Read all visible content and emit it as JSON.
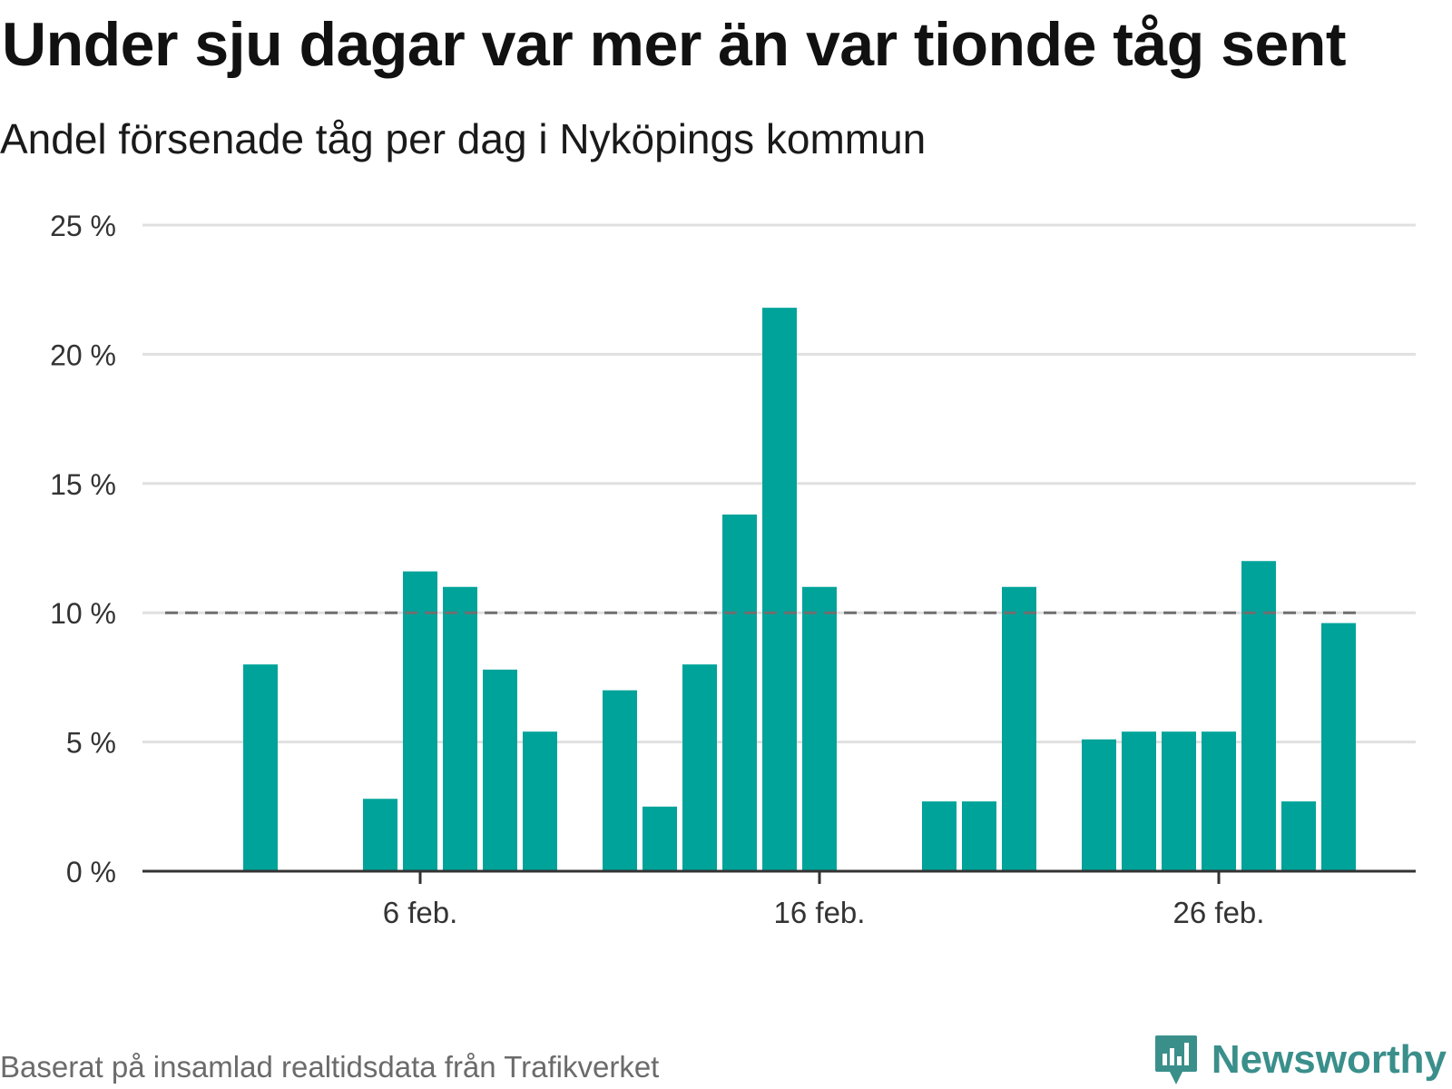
{
  "title": "Under sju dagar var mer än var tionde tåg sent",
  "subtitle": "Andel försenade tåg per dag i Nyköpings kommun",
  "source": "Baserat på insamlad realtidsdata från Trafikverket",
  "brand": {
    "name": "Newsworthy",
    "icon": "newsworthy-logo-icon",
    "color": "#3a8f8b"
  },
  "colors": {
    "bar": "#00a39a",
    "reference_line": "#6f6f6f",
    "grid": "#e0e0e0",
    "axis": "#333333"
  },
  "chart_data": {
    "type": "bar",
    "x": [
      "1 feb.",
      "2 feb.",
      "3 feb.",
      "4 feb.",
      "5 feb.",
      "6 feb.",
      "7 feb.",
      "8 feb.",
      "9 feb.",
      "10 feb.",
      "11 feb.",
      "12 feb.",
      "13 feb.",
      "14 feb.",
      "15 feb.",
      "16 feb.",
      "17 feb.",
      "18 feb.",
      "19 feb.",
      "20 feb.",
      "21 feb.",
      "22 feb.",
      "23 feb.",
      "24 feb.",
      "25 feb.",
      "26 feb.",
      "27 feb.",
      "28 feb.",
      "29 feb."
    ],
    "values": [
      null,
      8.0,
      null,
      null,
      2.8,
      11.6,
      11.0,
      7.8,
      5.4,
      null,
      7.0,
      2.5,
      8.0,
      13.8,
      21.8,
      11.0,
      null,
      null,
      2.7,
      2.7,
      11.0,
      null,
      5.1,
      5.4,
      5.4,
      5.4,
      12.0,
      2.7,
      9.6
    ],
    "x_ticks": [
      "6 feb.",
      "16 feb.",
      "26 feb."
    ],
    "y_ticks": [
      "0 %",
      "5 %",
      "10 %",
      "15 %",
      "20 %",
      "25 %"
    ],
    "ylim": [
      0,
      25
    ],
    "reference_line": 10,
    "grid": true,
    "xlabel": "",
    "ylabel": ""
  }
}
